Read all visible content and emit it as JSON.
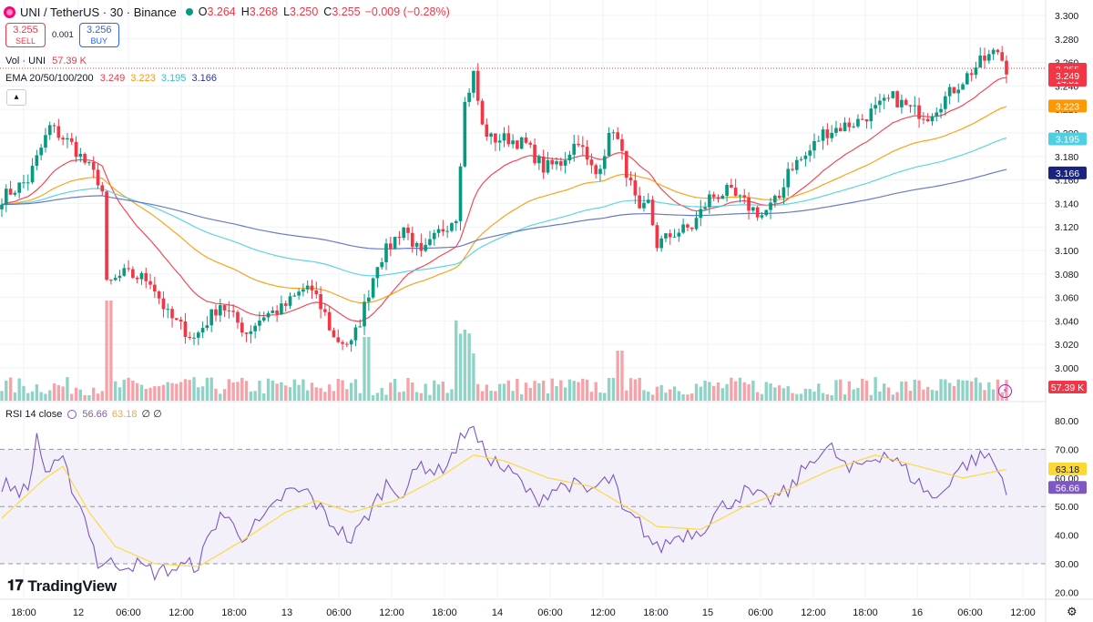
{
  "header": {
    "symbol": "UNI / TetherUS · 30 · Binance",
    "open_label": "O",
    "open": "3.264",
    "high_label": "H",
    "high": "3.268",
    "low_label": "L",
    "low": "3.250",
    "close_label": "C",
    "close": "3.255",
    "change": "−0.009 (−0.28%)"
  },
  "trade": {
    "sell_price": "3.255",
    "sell_label": "SELL",
    "spread": "0.001",
    "buy_price": "3.256",
    "buy_label": "BUY"
  },
  "indicators": {
    "vol_label": "Vol · UNI",
    "vol_value": "57.39 K",
    "ema_label": "EMA 20/50/100/200",
    "ema20": "3.249",
    "ema50": "3.223",
    "ema100": "3.195",
    "ema200": "3.166",
    "rsi_label": "RSI 14 close",
    "rsi_value": "56.66",
    "rsi_ma": "63.18",
    "rsi_extra": "∅ ∅"
  },
  "collapse_icon": "chevron-up-icon",
  "branding": {
    "logo_mark": "𝟏𝟕",
    "name": "TradingView"
  },
  "colors": {
    "up": "#089981",
    "down": "#f23645",
    "ema20": "#f23645",
    "ema50": "#ff9800",
    "ema100": "#4dd0e1",
    "ema200": "#5c6bc0",
    "rsi": "#7e57c2",
    "rsi_ma": "#fdd835"
  },
  "chart_data": {
    "type": "candlestick",
    "title": "UNI / TetherUS · 30 · Binance",
    "price_axis": {
      "ylim": [
        2.98,
        3.31
      ],
      "ticks": [
        "3.300",
        "3.280",
        "3.260",
        "3.240",
        "3.220",
        "3.200",
        "3.180",
        "3.160",
        "3.140",
        "3.120",
        "3.100",
        "3.080",
        "3.060",
        "3.040",
        "3.020",
        "3.000"
      ]
    },
    "time_axis": {
      "ticks": [
        "18:00",
        "12",
        "06:00",
        "12:00",
        "18:00",
        "13",
        "06:00",
        "12:00",
        "18:00",
        "14",
        "06:00",
        "12:00",
        "18:00",
        "15",
        "06:00",
        "12:00",
        "18:00",
        "16",
        "06:00",
        "12:00"
      ]
    },
    "price_labels": [
      {
        "label": "3.255",
        "sub": "14:31",
        "value": 3.255,
        "color": "#f23645"
      },
      {
        "label": "3.249",
        "value": 3.249,
        "color": "#f23645"
      },
      {
        "label": "3.223",
        "value": 3.223,
        "color": "#ff9800"
      },
      {
        "label": "3.195",
        "value": 3.195,
        "color": "#4dd0e1"
      },
      {
        "label": "3.166",
        "value": 3.166,
        "color": "#1a237e"
      }
    ],
    "volume_label": "57.39 K",
    "price_anchors": [
      [
        0,
        3.145
      ],
      [
        6,
        3.16
      ],
      [
        11,
        3.205
      ],
      [
        16,
        3.19
      ],
      [
        22,
        3.16
      ],
      [
        23,
        3.15
      ],
      [
        24,
        3.07
      ],
      [
        28,
        3.08
      ],
      [
        34,
        3.075
      ],
      [
        38,
        3.045
      ],
      [
        44,
        3.025
      ],
      [
        50,
        3.055
      ],
      [
        56,
        3.03
      ],
      [
        60,
        3.045
      ],
      [
        64,
        3.05
      ],
      [
        70,
        3.07
      ],
      [
        74,
        3.045
      ],
      [
        76,
        3.025
      ],
      [
        80,
        3.02
      ],
      [
        82,
        3.04
      ],
      [
        86,
        3.09
      ],
      [
        92,
        3.12
      ],
      [
        96,
        3.095
      ],
      [
        100,
        3.115
      ],
      [
        104,
        3.13
      ],
      [
        106,
        3.225
      ],
      [
        108,
        3.25
      ],
      [
        110,
        3.205
      ],
      [
        112,
        3.195
      ],
      [
        116,
        3.195
      ],
      [
        120,
        3.19
      ],
      [
        124,
        3.17
      ],
      [
        128,
        3.175
      ],
      [
        132,
        3.195
      ],
      [
        134,
        3.175
      ],
      [
        136,
        3.165
      ],
      [
        140,
        3.205
      ],
      [
        144,
        3.155
      ],
      [
        146,
        3.13
      ],
      [
        148,
        3.14
      ],
      [
        150,
        3.105
      ],
      [
        154,
        3.115
      ],
      [
        158,
        3.12
      ],
      [
        162,
        3.145
      ],
      [
        166,
        3.15
      ],
      [
        170,
        3.14
      ],
      [
        174,
        3.13
      ],
      [
        178,
        3.145
      ],
      [
        180,
        3.17
      ],
      [
        184,
        3.18
      ],
      [
        188,
        3.2
      ],
      [
        192,
        3.205
      ],
      [
        196,
        3.21
      ],
      [
        200,
        3.22
      ],
      [
        204,
        3.23
      ],
      [
        208,
        3.22
      ],
      [
        212,
        3.215
      ],
      [
        216,
        3.23
      ],
      [
        220,
        3.245
      ],
      [
        224,
        3.26
      ],
      [
        228,
        3.27
      ],
      [
        230,
        3.255
      ]
    ],
    "rsi": {
      "ylim": [
        16,
        84
      ],
      "ticks": [
        "80.00",
        "70.00",
        "60.00",
        "50.00",
        "40.00",
        "30.00",
        "20.00"
      ],
      "overbought": 70,
      "oversold": 30,
      "current": 56.66,
      "ma": 63.18,
      "anchors": [
        [
          0,
          58
        ],
        [
          6,
          55
        ],
        [
          8,
          75
        ],
        [
          10,
          62
        ],
        [
          14,
          65
        ],
        [
          18,
          50
        ],
        [
          20,
          42
        ],
        [
          22,
          30
        ],
        [
          25,
          30
        ],
        [
          30,
          30
        ],
        [
          35,
          27
        ],
        [
          45,
          30
        ],
        [
          50,
          48
        ],
        [
          55,
          40
        ],
        [
          60,
          45
        ],
        [
          65,
          55
        ],
        [
          70,
          55
        ],
        [
          75,
          45
        ],
        [
          80,
          38
        ],
        [
          85,
          50
        ],
        [
          88,
          58
        ],
        [
          92,
          55
        ],
        [
          96,
          65
        ],
        [
          100,
          62
        ],
        [
          104,
          70
        ],
        [
          107,
          79
        ],
        [
          110,
          70
        ],
        [
          114,
          64
        ],
        [
          118,
          60
        ],
        [
          122,
          52
        ],
        [
          126,
          56
        ],
        [
          130,
          58
        ],
        [
          134,
          55
        ],
        [
          140,
          60
        ],
        [
          142,
          48
        ],
        [
          146,
          44
        ],
        [
          150,
          35
        ],
        [
          155,
          40
        ],
        [
          160,
          42
        ],
        [
          165,
          50
        ],
        [
          170,
          55
        ],
        [
          175,
          52
        ],
        [
          180,
          55
        ],
        [
          186,
          68
        ],
        [
          190,
          70
        ],
        [
          194,
          62
        ],
        [
          198,
          66
        ],
        [
          202,
          69
        ],
        [
          206,
          64
        ],
        [
          210,
          58
        ],
        [
          214,
          52
        ],
        [
          218,
          62
        ],
        [
          222,
          66
        ],
        [
          226,
          68
        ],
        [
          230,
          57
        ]
      ],
      "ma_anchors": [
        [
          0,
          46
        ],
        [
          10,
          60
        ],
        [
          14,
          64
        ],
        [
          20,
          48
        ],
        [
          26,
          36
        ],
        [
          35,
          30
        ],
        [
          45,
          29
        ],
        [
          55,
          38
        ],
        [
          65,
          48
        ],
        [
          72,
          52
        ],
        [
          80,
          48
        ],
        [
          90,
          52
        ],
        [
          100,
          60
        ],
        [
          108,
          68
        ],
        [
          115,
          66
        ],
        [
          125,
          60
        ],
        [
          135,
          57
        ],
        [
          145,
          48
        ],
        [
          150,
          43
        ],
        [
          160,
          42
        ],
        [
          170,
          50
        ],
        [
          180,
          56
        ],
        [
          190,
          63
        ],
        [
          200,
          68
        ],
        [
          210,
          64
        ],
        [
          220,
          60
        ],
        [
          230,
          63
        ]
      ]
    }
  }
}
